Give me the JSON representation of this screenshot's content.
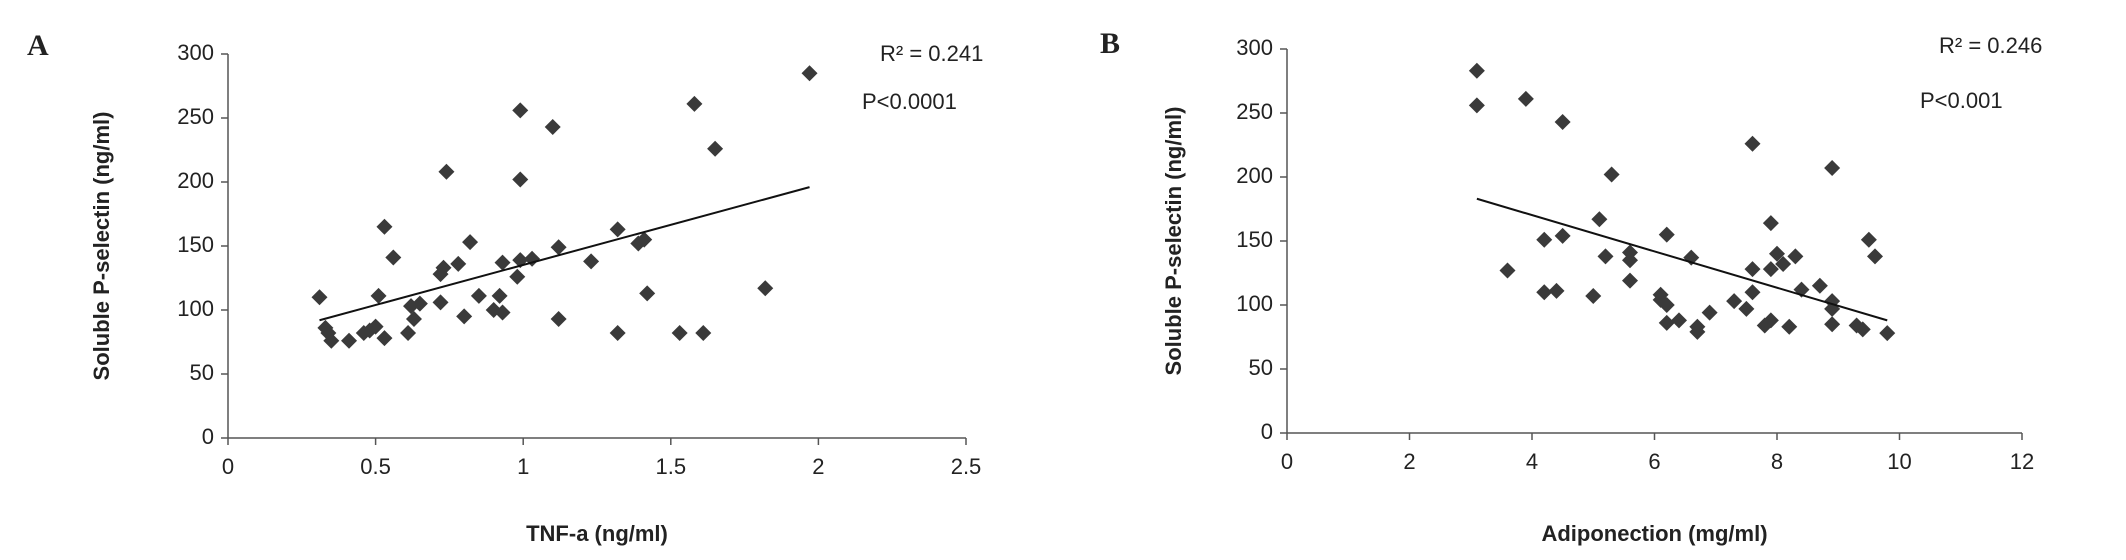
{
  "chart_data": [
    {
      "type": "scatter",
      "panel": "A",
      "x_label": "TNF-a (ng/ml)",
      "y_label": "Soluble P-selectin (ng/ml)",
      "annotations": [
        "R² = 0.241",
        "P<0.0001"
      ],
      "xlim": [
        0,
        2.5
      ],
      "xticks": [
        0,
        0.5,
        1,
        1.5,
        2,
        2.5
      ],
      "ylim": [
        0,
        300
      ],
      "yticks": [
        0,
        50,
        100,
        150,
        200,
        250,
        300
      ],
      "color": "#3a3a3a",
      "x": [
        0.31,
        0.33,
        0.34,
        0.35,
        0.41,
        0.46,
        0.48,
        0.5,
        0.51,
        0.53,
        0.53,
        0.56,
        0.61,
        0.62,
        0.63,
        0.65,
        0.72,
        0.72,
        0.73,
        0.74,
        0.78,
        0.8,
        0.82,
        0.85,
        0.9,
        0.92,
        0.93,
        0.93,
        0.98,
        0.99,
        0.99,
        0.99,
        1.03,
        1.1,
        1.12,
        1.12,
        1.23,
        1.32,
        1.32,
        1.39,
        1.41,
        1.42,
        1.53,
        1.58,
        1.61,
        1.65,
        1.82,
        1.97
      ],
      "values": [
        110,
        86,
        82,
        76,
        76,
        82,
        84,
        87,
        111,
        78,
        165,
        141,
        82,
        103,
        93,
        105,
        106,
        128,
        133,
        208,
        136,
        95,
        153,
        111,
        100,
        111,
        98,
        137,
        126,
        139,
        202,
        256,
        140,
        243,
        149,
        93,
        138,
        163,
        82,
        152,
        155,
        113,
        82,
        261,
        82,
        226,
        117,
        285
      ],
      "trendline": {
        "x": [
          0.31,
          1.97
        ],
        "y": [
          92,
          196
        ]
      }
    },
    {
      "type": "scatter",
      "panel": "B",
      "x_label": "Adiponection (mg/ml)",
      "y_label": "Soluble P-selectin (ng/ml)",
      "annotations": [
        "R² = 0.246",
        "P<0.001"
      ],
      "xlim": [
        0,
        12
      ],
      "xticks": [
        0,
        2,
        4,
        6,
        8,
        10,
        12
      ],
      "ylim": [
        0,
        300
      ],
      "yticks": [
        0,
        50,
        100,
        150,
        200,
        250,
        300
      ],
      "color": "#3a3a3a",
      "x": [
        3.1,
        3.1,
        3.6,
        3.9,
        4.2,
        4.2,
        4.4,
        4.5,
        4.5,
        5.0,
        5.1,
        5.2,
        5.3,
        5.6,
        5.6,
        5.6,
        6.1,
        6.1,
        6.2,
        6.2,
        6.2,
        6.4,
        6.6,
        6.7,
        6.7,
        6.9,
        7.3,
        7.5,
        7.6,
        7.6,
        7.6,
        7.8,
        7.9,
        7.9,
        7.9,
        8.0,
        8.1,
        8.2,
        8.3,
        8.4,
        8.7,
        8.9,
        8.9,
        8.9,
        8.9,
        9.3,
        9.4,
        9.5,
        9.6,
        9.8
      ],
      "values": [
        283,
        256,
        127,
        261,
        151,
        110,
        111,
        243,
        154,
        107,
        167,
        138,
        202,
        119,
        135,
        141,
        108,
        104,
        100,
        86,
        155,
        88,
        137,
        83,
        79,
        94,
        103,
        97,
        128,
        110,
        226,
        84,
        88,
        128,
        164,
        140,
        132,
        83,
        138,
        112,
        115,
        207,
        97,
        85,
        103,
        84,
        81,
        151,
        138,
        78
      ],
      "trendline": {
        "x": [
          3.1,
          9.8
        ],
        "y": [
          183,
          88
        ]
      }
    }
  ]
}
